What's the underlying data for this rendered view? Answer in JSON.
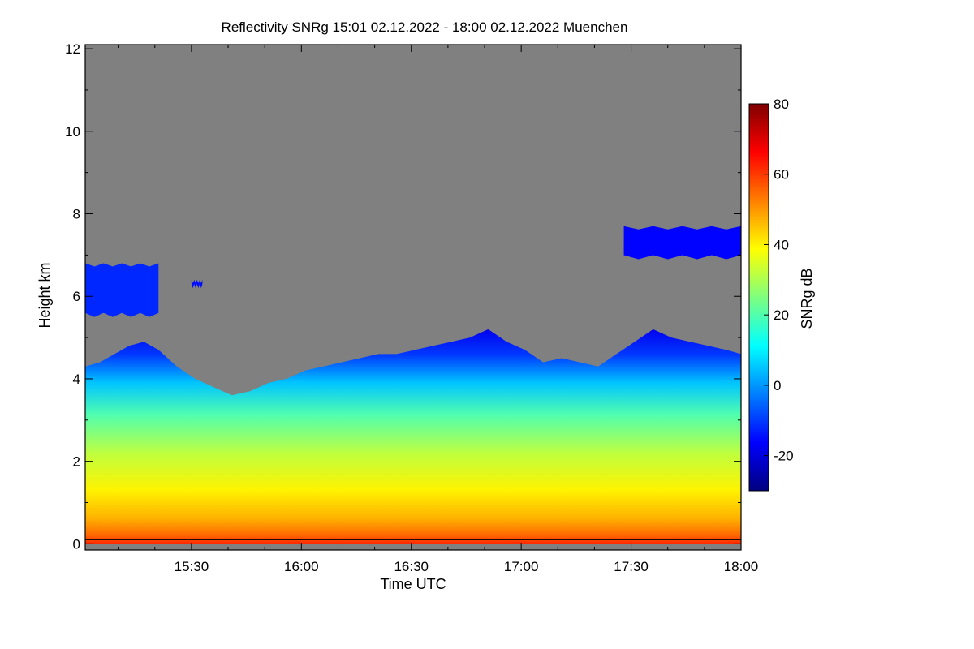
{
  "chart_data": {
    "type": "heatmap",
    "title": "Reflectivity SNRg   15:01 02.12.2022 - 18:00 02.12.2022 Muenchen",
    "xlabel": "Time UTC",
    "ylabel": "Height km",
    "colorbar_label": "SNRg dB",
    "x_range_minutes": [
      0,
      179
    ],
    "x_ticks": [
      {
        "label": "15:30",
        "minute": 29
      },
      {
        "label": "16:00",
        "minute": 59
      },
      {
        "label": "16:30",
        "minute": 89
      },
      {
        "label": "17:00",
        "minute": 119
      },
      {
        "label": "17:30",
        "minute": 149
      },
      {
        "label": "18:00",
        "minute": 179
      }
    ],
    "ylim": [
      -0.15,
      12.1
    ],
    "y_ticks": [
      0,
      2,
      4,
      6,
      8,
      10,
      12
    ],
    "colorbar_range": [
      -30,
      80
    ],
    "colorbar_ticks": [
      -20,
      0,
      20,
      40,
      60,
      80
    ],
    "no_signal_color": "#808080",
    "colormap": [
      "#00007f",
      "#0000ff",
      "#007fff",
      "#00ffff",
      "#7fff7f",
      "#ffff00",
      "#ff7f00",
      "#ff0000",
      "#7f0000"
    ],
    "echo_top_km": {
      "minutes": [
        0,
        4,
        8,
        12,
        16,
        20,
        25,
        30,
        35,
        40,
        45,
        50,
        55,
        60,
        65,
        70,
        75,
        80,
        85,
        90,
        95,
        100,
        105,
        110,
        115,
        120,
        125,
        130,
        135,
        140,
        145,
        150,
        155,
        160,
        165,
        170,
        175,
        179
      ],
      "height": [
        4.3,
        4.4,
        4.6,
        4.8,
        4.9,
        4.7,
        4.3,
        4.0,
        3.8,
        3.6,
        3.7,
        3.9,
        4.0,
        4.2,
        4.3,
        4.4,
        4.5,
        4.6,
        4.6,
        4.7,
        4.8,
        4.9,
        5.0,
        5.2,
        4.9,
        4.7,
        4.4,
        4.5,
        4.4,
        4.3,
        4.6,
        4.9,
        5.2,
        5.0,
        4.9,
        4.8,
        4.7,
        4.6
      ]
    },
    "cloud_layers": [
      {
        "name": "upper cloud early",
        "minute_start": 0,
        "minute_end": 20,
        "base_km": 5.5,
        "top_km": 6.8,
        "snr_db": -12
      },
      {
        "name": "small patch",
        "minute_start": 29,
        "minute_end": 32,
        "base_km": 6.2,
        "top_km": 6.4,
        "snr_db": -15
      },
      {
        "name": "upper cloud late",
        "minute_start": 147,
        "minute_end": 179,
        "base_km": 6.9,
        "top_km": 7.7,
        "snr_db": -16
      }
    ],
    "ground_line_km": 0.1
  }
}
